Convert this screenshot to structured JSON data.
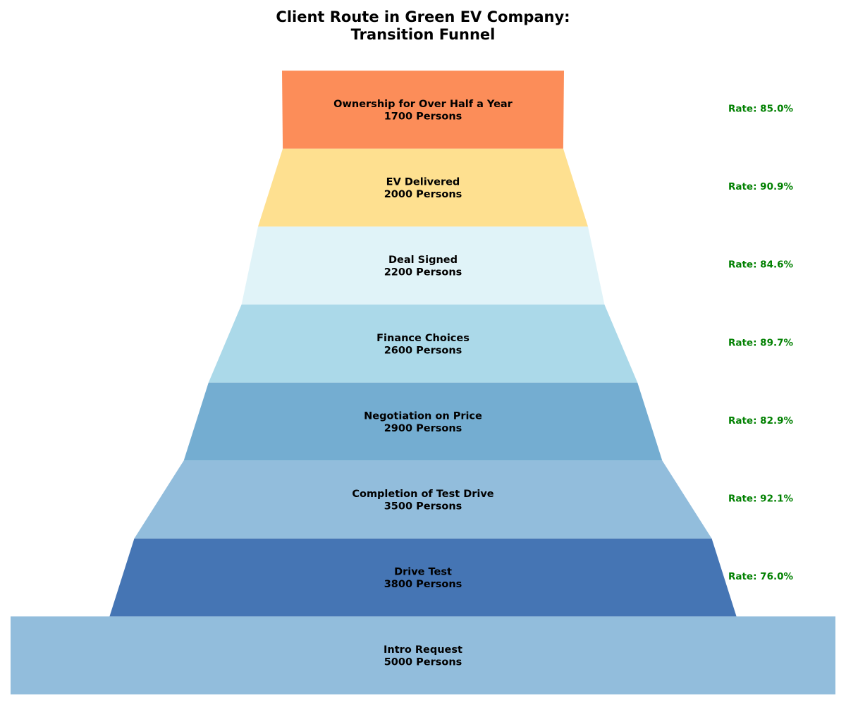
{
  "chart_data": {
    "type": "funnel",
    "title_line1": "Client Route in Green EV Company:",
    "title_line2": "Transition Funnel",
    "value_unit": "Persons",
    "rate_prefix": "Rate: ",
    "rate_color": "#008000",
    "stages": [
      {
        "name": "Intro Request",
        "value": 5000,
        "color": "#92bddc",
        "rate": null
      },
      {
        "name": "Drive Test",
        "value": 3800,
        "color": "#4575b4",
        "rate": "76.0%"
      },
      {
        "name": "Completion of Test Drive",
        "value": 3500,
        "color": "#92bddc",
        "rate": "92.1%"
      },
      {
        "name": "Negotiation on Price",
        "value": 2900,
        "color": "#74add1",
        "rate": "82.9%"
      },
      {
        "name": "Finance Choices",
        "value": 2600,
        "color": "#abd9e9",
        "rate": "89.7%"
      },
      {
        "name": "Deal Signed",
        "value": 2200,
        "color": "#e0f3f8",
        "rate": "84.6%"
      },
      {
        "name": "EV Delivered",
        "value": 2000,
        "color": "#fee090",
        "rate": "90.9%"
      },
      {
        "name": "Ownership for Over Half a Year",
        "value": 1700,
        "color": "#fc8d59",
        "rate": "85.0%"
      }
    ]
  }
}
